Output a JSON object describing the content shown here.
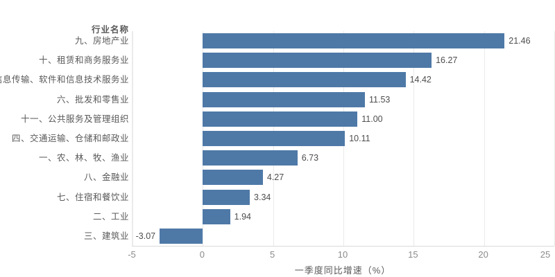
{
  "colors": {
    "bar": "#4E79A7",
    "gridline": "#eaeaea",
    "axis_line": "#d9d9d9",
    "tick_text": "#8a8a8a",
    "label_text": "#595959",
    "value_text": "#4d4d4d",
    "background": "#ffffff"
  },
  "chart_data": {
    "type": "bar",
    "orientation": "horizontal",
    "title": "",
    "category_axis_title": "行业名称",
    "xlabel": "一季度同比增速（%）",
    "ylabel": "行业名称",
    "xlim": [
      -5,
      25
    ],
    "x_ticks": [
      -5,
      0,
      5,
      10,
      15,
      20,
      25
    ],
    "grid": "vertical light gridlines at each x tick",
    "legend": "none",
    "value_label_position": "outside end of bar",
    "categories": [
      "九、房地产业",
      "十、租赁和商务服务业",
      "五、信息传输、软件和信息技术服务业",
      "六、批发和零售业",
      "十一、公共服务及管理组织",
      "四、交通运输、仓储和邮政业",
      "一、农、林、牧、渔业",
      "八、金融业",
      "七、住宿和餐饮业",
      "二、工业",
      "三、建筑业"
    ],
    "values": [
      21.46,
      16.27,
      14.42,
      11.53,
      11.0,
      10.11,
      6.73,
      4.27,
      3.34,
      1.94,
      -3.07
    ],
    "value_labels": [
      "21.46",
      "16.27",
      "14.42",
      "11.53",
      "11.00",
      "10.11",
      "6.73",
      "4.27",
      "3.34",
      "1.94",
      "-3.07"
    ]
  }
}
